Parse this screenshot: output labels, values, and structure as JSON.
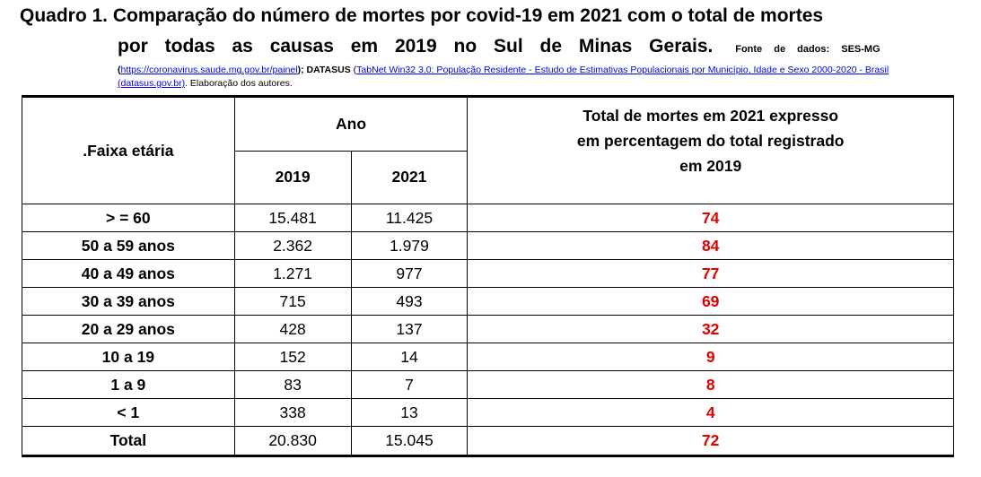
{
  "title": {
    "line1": "Quadro 1. Comparação do número de mortes por covid-19 em 2021  com o  total de mortes",
    "line2": "por todas as causas em 2019 no Sul de Minas Gerais.",
    "source_label": "Fonte de dados: SES-MG"
  },
  "refs": {
    "open_paren": "(",
    "link1": "https://coronavirus.saude.mg.gov.br/painel",
    "after_link1": "); ",
    "datasus": "DATASUS",
    "open_paren2": " (",
    "link2": "TabNet Win32 3.0: População Residente - Estudo de Estimativas Populacionais por Município, Idade e Sexo 2000-2020 - Brasil (datasus.gov.br)",
    "closing": ". Elaboração dos autores."
  },
  "table": {
    "header_age": ".Faixa etária",
    "header_year": "Ano",
    "header_2019": "2019",
    "header_2021": "2021",
    "header_pct": "Total de mortes em 2021 expresso em percentagem do total registrado em 2019",
    "rows": [
      {
        "age": "> = 60",
        "y2019": "15.481",
        "y2021": "11.425",
        "pct": "74"
      },
      {
        "age": "50 a 59 anos",
        "y2019": "2.362",
        "y2021": "1.979",
        "pct": "84"
      },
      {
        "age": "40 a 49 anos",
        "y2019": "1.271",
        "y2021": "977",
        "pct": "77"
      },
      {
        "age": "30 a 39 anos",
        "y2019": "715",
        "y2021": "493",
        "pct": "69"
      },
      {
        "age": "20 a 29 anos",
        "y2019": "428",
        "y2021": "137",
        "pct": "32"
      },
      {
        "age": "10 a 19",
        "y2019": "152",
        "y2021": "14",
        "pct": "9"
      },
      {
        "age": "1 a 9",
        "y2019": "83",
        "y2021": "7",
        "pct": "8"
      },
      {
        "age": "< 1",
        "y2019": "338",
        "y2021": "13",
        "pct": "4"
      },
      {
        "age": "Total",
        "y2019": "20.830",
        "y2021": "15.045",
        "pct": "72"
      }
    ]
  },
  "colors": {
    "percent_text": "#e00000",
    "link": "#0000ee"
  }
}
